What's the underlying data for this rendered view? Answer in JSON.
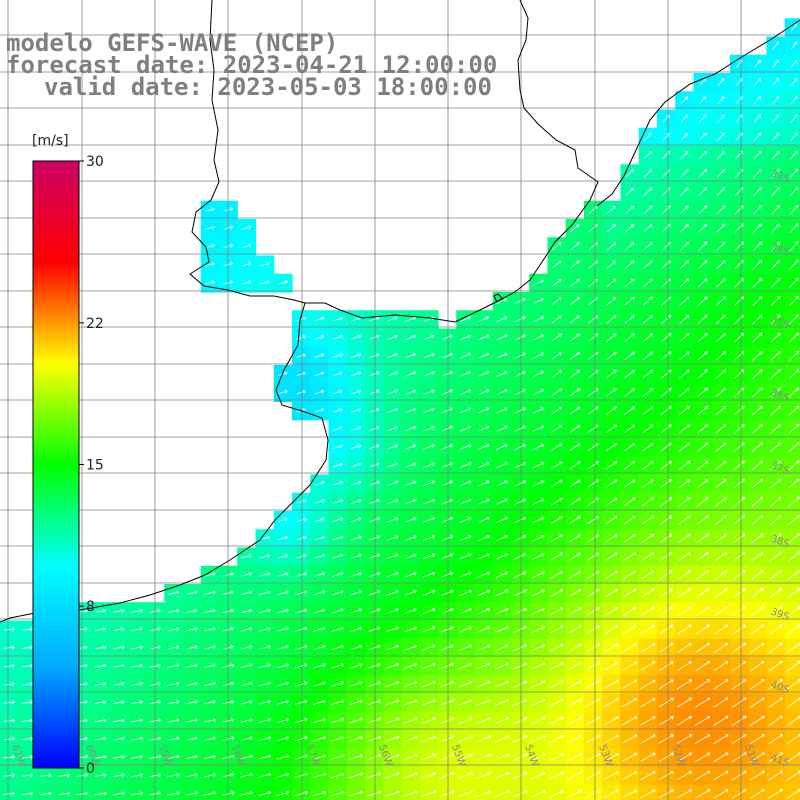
{
  "title": {
    "line1": "modelo GEFS-WAVE (NCEP)",
    "line2": "forecast date: 2023-04-21 12:00:00",
    "line3": "valid date: 2023-05-03 18:00:00"
  },
  "colorbar": {
    "units": "[m/s]",
    "ticks": [
      {
        "label": "30",
        "value": 30
      },
      {
        "label": "22",
        "value": 22
      },
      {
        "label": "15",
        "value": 15
      },
      {
        "label": "8",
        "value": 8
      },
      {
        "label": "0",
        "value": 0
      }
    ],
    "min": 0,
    "max": 30,
    "stops": [
      "#0000ff",
      "#00aaff",
      "#00ffff",
      "#00ff00",
      "#ffff00",
      "#ff0000",
      "#cc0066"
    ]
  },
  "grid": {
    "lon_labels": [
      "61W",
      "60W",
      "59W",
      "58W",
      "57W",
      "56W",
      "55W",
      "54W",
      "53W",
      "52W",
      "51W"
    ],
    "lat_labels": [
      "33S",
      "34S",
      "35S",
      "36S",
      "37S",
      "38S",
      "39S",
      "40S",
      "41S"
    ]
  },
  "colors": {
    "land": "#ffffff",
    "coastline": "#000000",
    "gridline": "#808080",
    "arrow": "#ffffff",
    "title": "#7f7f7f"
  }
}
